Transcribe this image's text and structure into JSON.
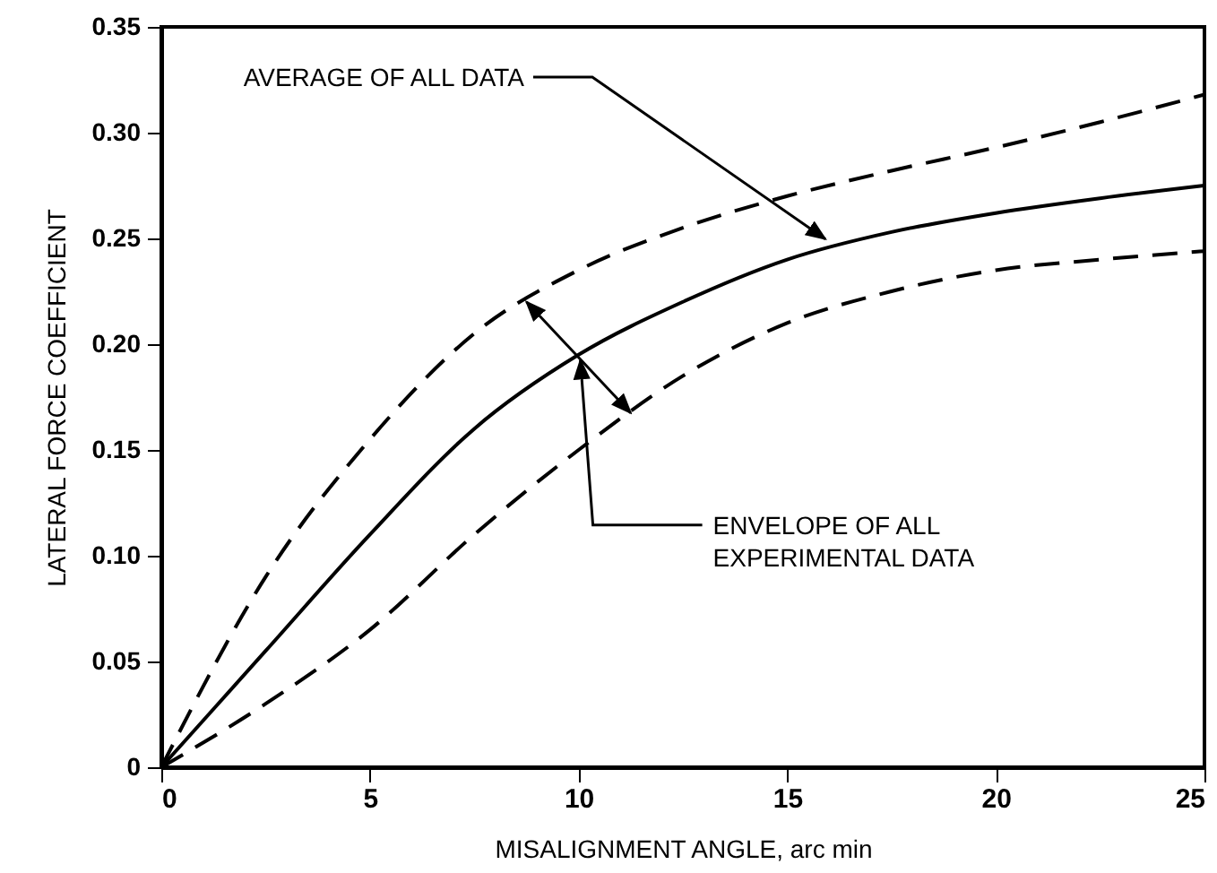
{
  "chart_data": {
    "type": "line",
    "xlabel": "MISALIGNMENT ANGLE, arc min",
    "ylabel": "LATERAL FORCE COEFFICIENT",
    "x": [
      0,
      2.5,
      5,
      7.5,
      10,
      12.5,
      15,
      17.5,
      20,
      22.5,
      25
    ],
    "series": [
      {
        "color": "#000000",
        "line_style": "solid",
        "values": [
          0,
          0.055,
          0.11,
          0.16,
          0.195,
          0.22,
          0.24,
          0.253,
          0.262,
          0.269,
          0.275
        ]
      },
      {
        "color": "#000000",
        "line_style": "dashed",
        "values": [
          0,
          0.09,
          0.155,
          0.205,
          0.235,
          0.255,
          0.27,
          0.282,
          0.293,
          0.305,
          0.318
        ]
      },
      {
        "color": "#000000",
        "line_style": "dashed",
        "values": [
          0,
          0.03,
          0.065,
          0.11,
          0.15,
          0.185,
          0.21,
          0.225,
          0.235,
          0.24,
          0.244
        ]
      }
    ],
    "xlim": [
      0,
      25
    ],
    "xticks": [
      0,
      5,
      10,
      15,
      20,
      25
    ],
    "ylim": [
      0,
      0.35
    ],
    "yticks": [
      {
        "value": 0,
        "label": "0"
      },
      {
        "value": 0.05,
        "label": "0.05"
      },
      {
        "value": 0.1,
        "label": "0.10"
      },
      {
        "value": 0.15,
        "label": "0.15"
      },
      {
        "value": 0.2,
        "label": "0.20"
      },
      {
        "value": 0.25,
        "label": "0.25"
      },
      {
        "value": 0.3,
        "label": "0.30"
      },
      {
        "value": 0.35,
        "label": "0.35"
      }
    ],
    "grid": false,
    "marker": "none",
    "annotations": [
      {
        "text": "AVERAGE OF ALL DATA",
        "x": 16,
        "y": 0.248
      },
      {
        "text": "ENVELOPE OF ALL EXPERIMENTAL DATA",
        "x": 10,
        "y": 0.195
      }
    ]
  }
}
